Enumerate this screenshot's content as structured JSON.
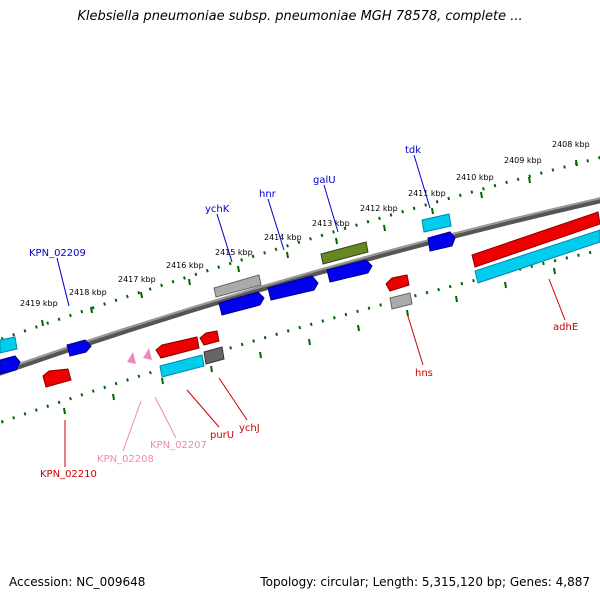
{
  "title": "Klebsiella pneumoniae subsp. pneumoniae MGH 78578, complete ...",
  "footer": {
    "accession": "Accession: NC_009648",
    "summary": "Topology: circular; Length: 5,315,120 bp; Genes: 4,887"
  },
  "ticks": [
    {
      "label": "2408 kbp"
    },
    {
      "label": "2409 kbp"
    },
    {
      "label": "2410 kbp"
    },
    {
      "label": "2411 kbp"
    },
    {
      "label": "2412 kbp"
    },
    {
      "label": "2413 kbp"
    },
    {
      "label": "2414 kbp"
    },
    {
      "label": "2415 kbp"
    },
    {
      "label": "2416 kbp"
    },
    {
      "label": "2417 kbp"
    },
    {
      "label": "2418 kbp"
    },
    {
      "label": "2419 kbp"
    }
  ],
  "gene_labels": [
    {
      "name": "KPN_02209",
      "color": "#0000cc"
    },
    {
      "name": "ychK",
      "color": "#0000cc"
    },
    {
      "name": "hnr",
      "color": "#0000cc"
    },
    {
      "name": "galU",
      "color": "#0000cc"
    },
    {
      "name": "tdk",
      "color": "#0000cc"
    },
    {
      "name": "adhE",
      "color": "#cc0000"
    },
    {
      "name": "hns",
      "color": "#cc0000"
    },
    {
      "name": "ychJ",
      "color": "#cc0000"
    },
    {
      "name": "purU",
      "color": "#cc0000"
    },
    {
      "name": "KPN_02207",
      "color": "#ee88bb"
    },
    {
      "name": "KPN_02208",
      "color": "#ee88bb"
    },
    {
      "name": "KPN_02210",
      "color": "#cc0000"
    }
  ],
  "colors": {
    "forward_cds": "#0000ee",
    "reverse_cds": "#ee0000",
    "rna": "#00ccee",
    "gray_feature": "#aaaaaa",
    "olive_feature": "#668822",
    "pink_feature": "#ee88bb",
    "backbone": "#777777",
    "tick": "#006600"
  }
}
